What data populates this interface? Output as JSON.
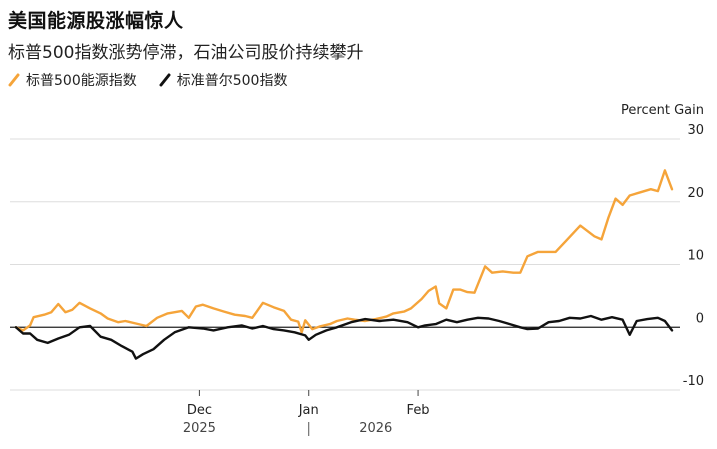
{
  "title": "美国能源股涨幅惊人",
  "subtitle": "标普500指数涨势停滞，石油公司股价持续攀升",
  "colors": {
    "energy": "#f5a43a",
    "sp500": "#111111",
    "grid": "#dddddd",
    "zero": "#222222"
  },
  "chart_data": {
    "type": "line",
    "title": "美国能源股涨幅惊人",
    "ylabel": "Percent Gain",
    "ylim": [
      -10,
      30
    ],
    "yticks": [
      30,
      20,
      10,
      0,
      -10
    ],
    "grid": true,
    "legend_position": "top-left",
    "x_tick_labels": [
      {
        "date": "2025-12-01",
        "label": "Dec"
      },
      {
        "date": "2026-01-01",
        "label": "Jan"
      },
      {
        "date": "2026-02-01",
        "label": "Feb"
      }
    ],
    "year_labels": [
      {
        "date": "2025-12-01",
        "label": "2025"
      },
      {
        "date": "2026-01-20",
        "label": "2026"
      }
    ],
    "series": [
      {
        "name": "标普500能源指数",
        "color": "#f5a43a",
        "points": [
          [
            "2025-10-10",
            0.0
          ],
          [
            "2025-10-12",
            -0.5
          ],
          [
            "2025-10-14",
            0.3
          ],
          [
            "2025-10-15",
            1.6
          ],
          [
            "2025-10-18",
            2.0
          ],
          [
            "2025-10-20",
            2.4
          ],
          [
            "2025-10-22",
            3.7
          ],
          [
            "2025-10-24",
            2.4
          ],
          [
            "2025-10-26",
            2.8
          ],
          [
            "2025-10-28",
            3.9
          ],
          [
            "2025-10-31",
            3.0
          ],
          [
            "2025-11-03",
            2.2
          ],
          [
            "2025-11-05",
            1.4
          ],
          [
            "2025-11-08",
            0.8
          ],
          [
            "2025-11-10",
            1.0
          ],
          [
            "2025-11-13",
            0.6
          ],
          [
            "2025-11-16",
            0.2
          ],
          [
            "2025-11-19",
            1.5
          ],
          [
            "2025-11-22",
            2.2
          ],
          [
            "2025-11-26",
            2.6
          ],
          [
            "2025-11-28",
            1.5
          ],
          [
            "2025-11-30",
            3.3
          ],
          [
            "2025-12-02",
            3.6
          ],
          [
            "2025-12-05",
            3.0
          ],
          [
            "2025-12-08",
            2.5
          ],
          [
            "2025-12-11",
            2.0
          ],
          [
            "2025-12-14",
            1.8
          ],
          [
            "2025-12-16",
            1.5
          ],
          [
            "2025-12-19",
            3.9
          ],
          [
            "2025-12-22",
            3.2
          ],
          [
            "2025-12-25",
            2.6
          ],
          [
            "2025-12-27",
            1.2
          ],
          [
            "2025-12-29",
            0.9
          ],
          [
            "2025-12-30",
            -0.8
          ],
          [
            "2025-12-31",
            1.1
          ],
          [
            "2026-01-02",
            -0.3
          ],
          [
            "2026-01-04",
            0.1
          ],
          [
            "2026-01-07",
            0.5
          ],
          [
            "2026-01-09",
            1.0
          ],
          [
            "2026-01-12",
            1.4
          ],
          [
            "2026-01-14",
            1.2
          ],
          [
            "2026-01-17",
            1.0
          ],
          [
            "2026-01-20",
            1.3
          ],
          [
            "2026-01-23",
            1.7
          ],
          [
            "2026-01-25",
            2.2
          ],
          [
            "2026-01-28",
            2.5
          ],
          [
            "2026-01-30",
            3.0
          ],
          [
            "2026-02-02",
            4.5
          ],
          [
            "2026-02-04",
            5.8
          ],
          [
            "2026-02-06",
            6.5
          ],
          [
            "2026-02-07",
            3.8
          ],
          [
            "2026-02-09",
            3.0
          ],
          [
            "2026-02-11",
            6.0
          ],
          [
            "2026-02-13",
            6.0
          ],
          [
            "2026-02-15",
            5.6
          ],
          [
            "2026-02-17",
            5.5
          ],
          [
            "2026-02-20",
            9.7
          ],
          [
            "2026-02-22",
            8.7
          ],
          [
            "2026-02-25",
            8.9
          ],
          [
            "2026-02-28",
            8.7
          ],
          [
            "2026-03-02",
            8.7
          ],
          [
            "2026-03-04",
            11.3
          ],
          [
            "2026-03-07",
            12.0
          ],
          [
            "2026-03-12",
            12.0
          ],
          [
            "2026-03-15",
            13.8
          ],
          [
            "2026-03-19",
            16.2
          ],
          [
            "2026-03-23",
            14.5
          ],
          [
            "2026-03-25",
            14.0
          ],
          [
            "2026-03-27",
            17.5
          ],
          [
            "2026-03-29",
            20.5
          ],
          [
            "2026-03-31",
            19.5
          ],
          [
            "2026-04-02",
            21.0
          ],
          [
            "2026-04-05",
            21.5
          ],
          [
            "2026-04-08",
            22.0
          ],
          [
            "2026-04-10",
            21.7
          ],
          [
            "2026-04-12",
            25.0
          ],
          [
            "2026-04-14",
            22.0
          ]
        ]
      },
      {
        "name": "标准普尔500指数",
        "color": "#111111",
        "points": [
          [
            "2025-10-10",
            0.0
          ],
          [
            "2025-10-12",
            -1.0
          ],
          [
            "2025-10-14",
            -1.0
          ],
          [
            "2025-10-16",
            -2.0
          ],
          [
            "2025-10-19",
            -2.5
          ],
          [
            "2025-10-22",
            -1.8
          ],
          [
            "2025-10-25",
            -1.2
          ],
          [
            "2025-10-28",
            0.0
          ],
          [
            "2025-10-31",
            0.2
          ],
          [
            "2025-11-03",
            -1.5
          ],
          [
            "2025-11-06",
            -2.0
          ],
          [
            "2025-11-09",
            -3.0
          ],
          [
            "2025-11-12",
            -3.9
          ],
          [
            "2025-11-13",
            -5.0
          ],
          [
            "2025-11-15",
            -4.3
          ],
          [
            "2025-11-18",
            -3.5
          ],
          [
            "2025-11-21",
            -2.0
          ],
          [
            "2025-11-24",
            -0.8
          ],
          [
            "2025-11-28",
            0.0
          ],
          [
            "2025-12-02",
            -0.2
          ],
          [
            "2025-12-05",
            -0.5
          ],
          [
            "2025-12-09",
            0.0
          ],
          [
            "2025-12-13",
            0.3
          ],
          [
            "2025-12-16",
            -0.2
          ],
          [
            "2025-12-19",
            0.2
          ],
          [
            "2025-12-22",
            -0.3
          ],
          [
            "2025-12-25",
            -0.5
          ],
          [
            "2025-12-28",
            -0.8
          ],
          [
            "2025-12-31",
            -1.3
          ],
          [
            "2026-01-01",
            -2.0
          ],
          [
            "2026-01-03",
            -1.2
          ],
          [
            "2026-01-06",
            -0.5
          ],
          [
            "2026-01-09",
            0.0
          ],
          [
            "2026-01-13",
            0.8
          ],
          [
            "2026-01-17",
            1.3
          ],
          [
            "2026-01-21",
            1.0
          ],
          [
            "2026-01-25",
            1.2
          ],
          [
            "2026-01-29",
            0.8
          ],
          [
            "2026-02-01",
            0.0
          ],
          [
            "2026-02-03",
            0.3
          ],
          [
            "2026-02-06",
            0.5
          ],
          [
            "2026-02-09",
            1.2
          ],
          [
            "2026-02-12",
            0.8
          ],
          [
            "2026-02-15",
            1.2
          ],
          [
            "2026-02-18",
            1.5
          ],
          [
            "2026-02-21",
            1.4
          ],
          [
            "2026-02-24",
            1.0
          ],
          [
            "2026-02-27",
            0.5
          ],
          [
            "2026-03-02",
            0.0
          ],
          [
            "2026-03-04",
            -0.3
          ],
          [
            "2026-03-07",
            -0.2
          ],
          [
            "2026-03-10",
            0.8
          ],
          [
            "2026-03-13",
            1.0
          ],
          [
            "2026-03-16",
            1.5
          ],
          [
            "2026-03-19",
            1.4
          ],
          [
            "2026-03-22",
            1.8
          ],
          [
            "2026-03-25",
            1.2
          ],
          [
            "2026-03-28",
            1.6
          ],
          [
            "2026-03-31",
            1.2
          ],
          [
            "2026-04-02",
            -1.2
          ],
          [
            "2026-04-04",
            1.0
          ],
          [
            "2026-04-07",
            1.3
          ],
          [
            "2026-04-10",
            1.5
          ],
          [
            "2026-04-12",
            1.0
          ],
          [
            "2026-04-14",
            -0.5
          ]
        ]
      }
    ]
  }
}
